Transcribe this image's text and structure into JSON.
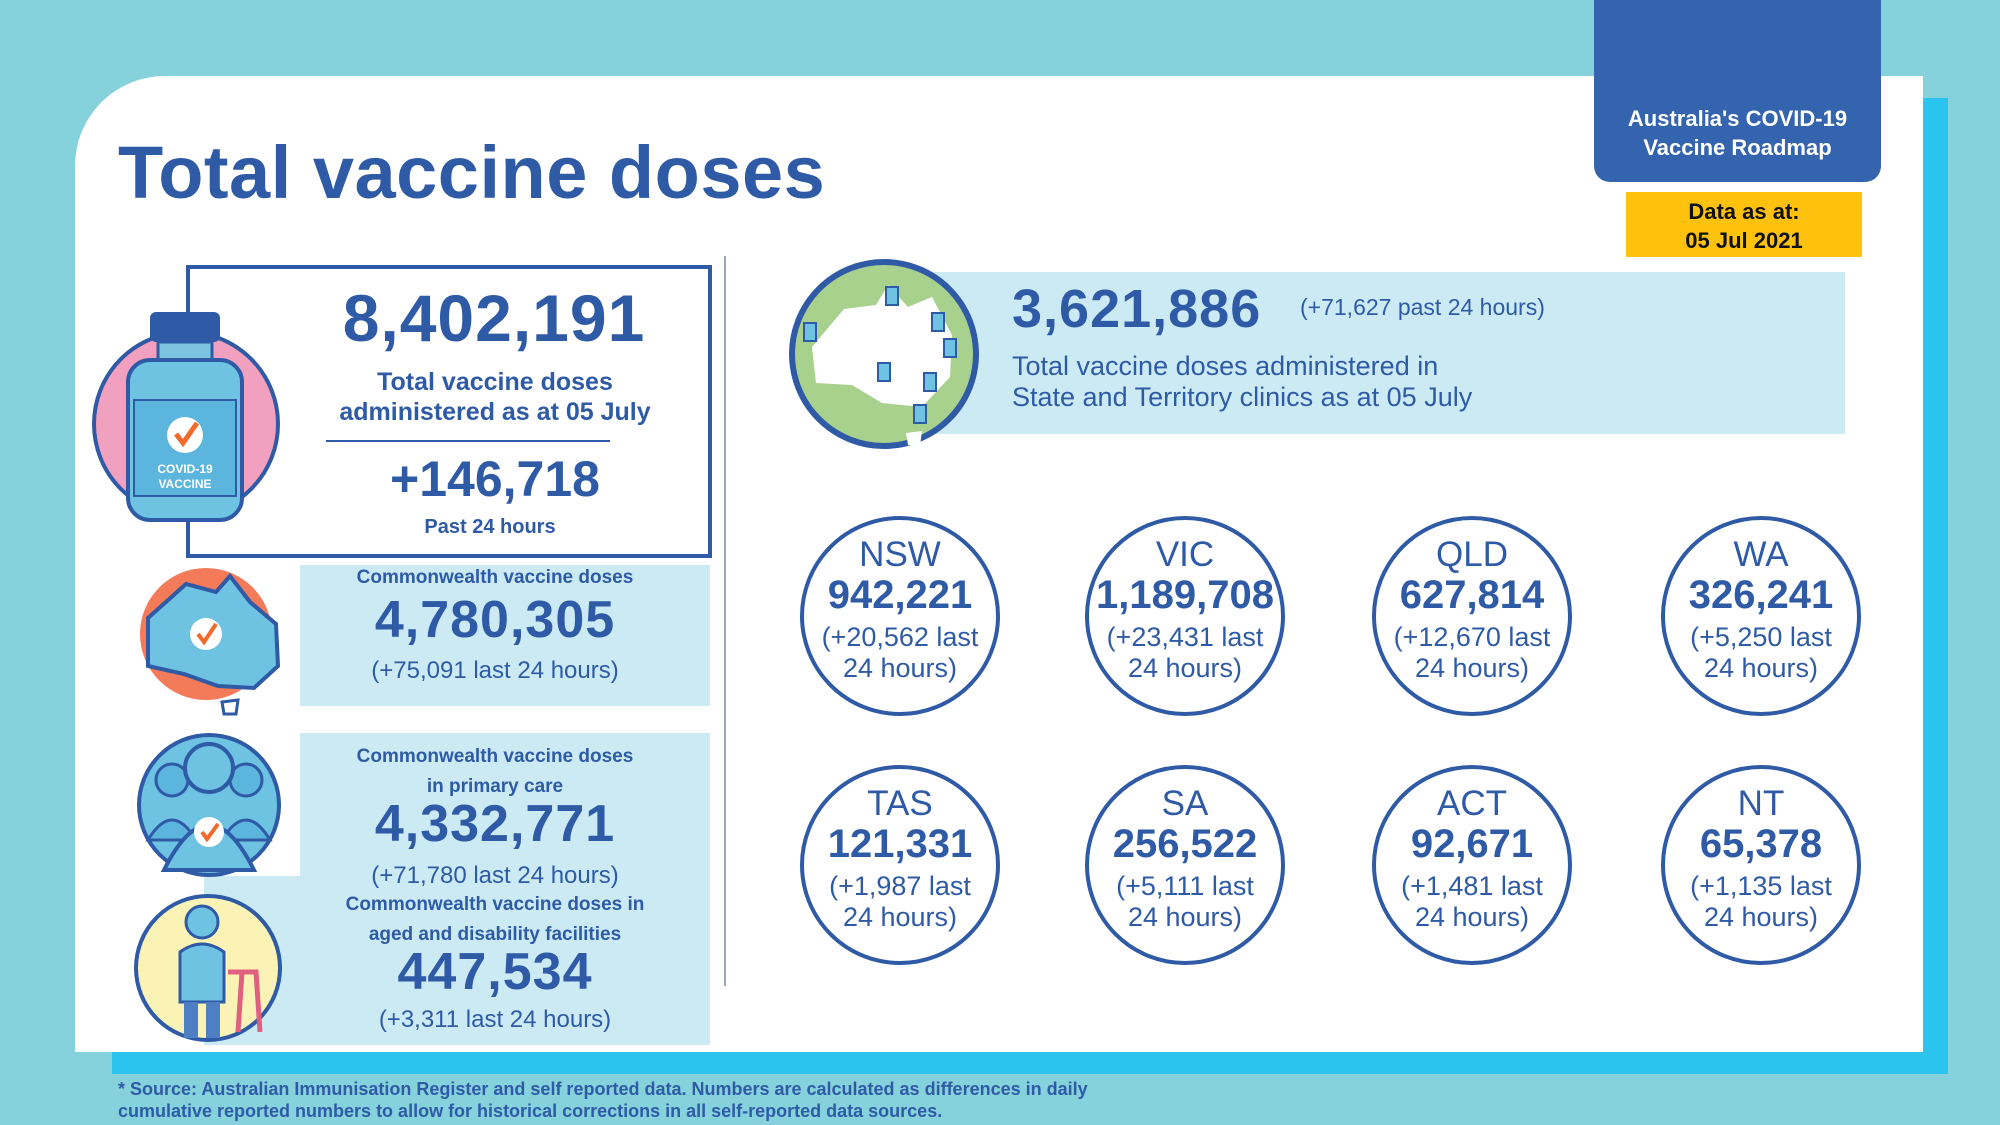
{
  "header": {
    "title": "Total vaccine doses",
    "badge_line1": "Australia's COVID-19",
    "badge_line2": "Vaccine Roadmap",
    "date_label": "Data as at:",
    "date_value": "05 Jul 2021"
  },
  "total": {
    "value": "8,402,191",
    "label_line1": "Total vaccine doses",
    "label_line2": "administered as at 05 July",
    "delta": "+146,718",
    "delta_label": "Past 24 hours",
    "vial_text_line1": "COVID-19",
    "vial_text_line2": "VACCINE"
  },
  "commonwealth": {
    "label": "Commonwealth vaccine doses",
    "value": "4,780,305",
    "delta": "(+75,091 last 24 hours)"
  },
  "primary_care": {
    "label_line1": "Commonwealth vaccine doses",
    "label_line2": "in primary care",
    "value": "4,332,771",
    "delta": "(+71,780 last 24 hours)"
  },
  "aged_care": {
    "label_line1": "Commonwealth vaccine doses in",
    "label_line2": "aged and disability facilities",
    "value": "447,534",
    "delta": "(+3,311 last 24 hours)"
  },
  "state_total": {
    "value": "3,621,886",
    "delta": "(+71,627 past 24 hours)",
    "label_line1": "Total vaccine doses administered in",
    "label_line2": "State and Territory clinics as at 05 July"
  },
  "states": [
    {
      "name": "NSW",
      "value": "942,221",
      "delta_line1": "(+20,562 last",
      "delta_line2": "24 hours)"
    },
    {
      "name": "VIC",
      "value": "1,189,708",
      "delta_line1": "(+23,431 last",
      "delta_line2": "24 hours)"
    },
    {
      "name": "QLD",
      "value": "627,814",
      "delta_line1": "(+12,670 last",
      "delta_line2": "24 hours)"
    },
    {
      "name": "WA",
      "value": "326,241",
      "delta_line1": "(+5,250 last",
      "delta_line2": "24 hours)"
    },
    {
      "name": "TAS",
      "value": "121,331",
      "delta_line1": "(+1,987 last",
      "delta_line2": "24 hours)"
    },
    {
      "name": "SA",
      "value": "256,522",
      "delta_line1": "(+5,111 last",
      "delta_line2": "24 hours)"
    },
    {
      "name": "ACT",
      "value": "92,671",
      "delta_line1": "(+1,481 last",
      "delta_line2": "24 hours)"
    },
    {
      "name": "NT",
      "value": "65,378",
      "delta_line1": "(+1,135 last",
      "delta_line2": "24 hours)"
    }
  ],
  "footer": {
    "line1": "* Source: Australian Immunisation Register and self reported data. Numbers are calculated as differences in daily",
    "line2": "cumulative reported numbers to allow for historical corrections in all self-reported data sources."
  },
  "colors": {
    "background": "#86d2dc",
    "accent_blue": "#2e5aa6",
    "badge_blue": "#3464ad",
    "date_yellow": "#fdc10e",
    "panel_light": "#cbeaf3",
    "check_orange": "#f26a2c"
  },
  "icons": [
    "vaccine-vial-icon",
    "australia-map-icon",
    "people-group-icon",
    "elderly-walker-icon",
    "state-clinic-map-icon"
  ]
}
